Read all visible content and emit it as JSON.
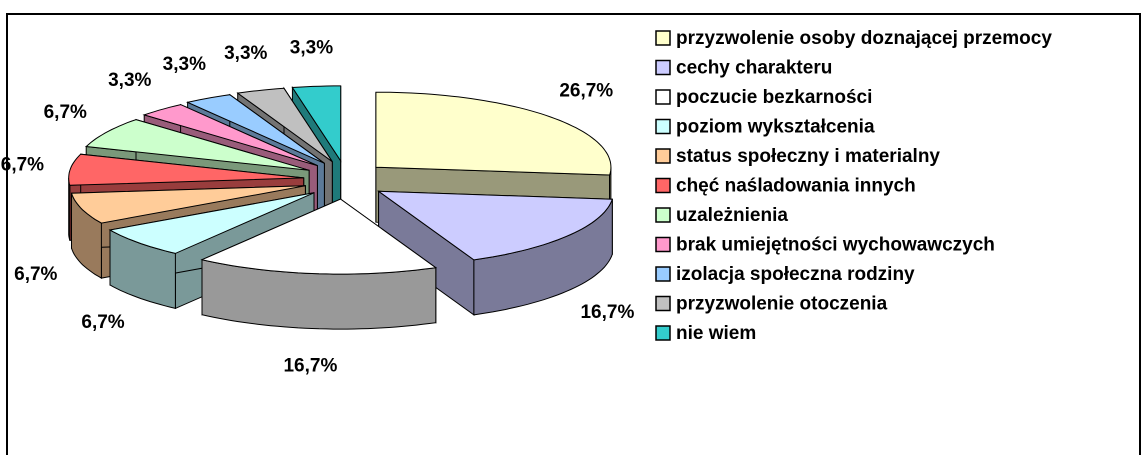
{
  "chart_data": {
    "type": "pie3d",
    "categories": [
      "przyzwolenie osoby doznającej przemocy",
      "cechy charakteru",
      "poczucie bezkarności",
      "poziom wykształcenia",
      "status społeczny i materialny",
      "chęć naśladowania innych",
      "uzależnienia",
      "brak umiejętności wychowawczych",
      "izolacja społeczna rodziny",
      "przyzwolenie otoczenia",
      "nie wiem"
    ],
    "values": [
      26.7,
      16.7,
      16.7,
      6.7,
      6.7,
      6.7,
      6.7,
      3.3,
      3.3,
      3.3,
      3.3
    ],
    "value_labels": [
      "26,7%",
      "16,7%",
      "16,7%",
      "6,7%",
      "6,7%",
      "6,7%",
      "6,7%",
      "3,3%",
      "3,3%",
      "3,3%",
      "3,3%"
    ],
    "colors": [
      "#FFFFCC",
      "#CCCCFF",
      "#FFFFFF",
      "#CCFFFF",
      "#FFCC99",
      "#FF6666",
      "#CCFFCC",
      "#FF99CC",
      "#99CCFF",
      "#C0C0C0",
      "#33CCCC"
    ],
    "legend": "right"
  }
}
